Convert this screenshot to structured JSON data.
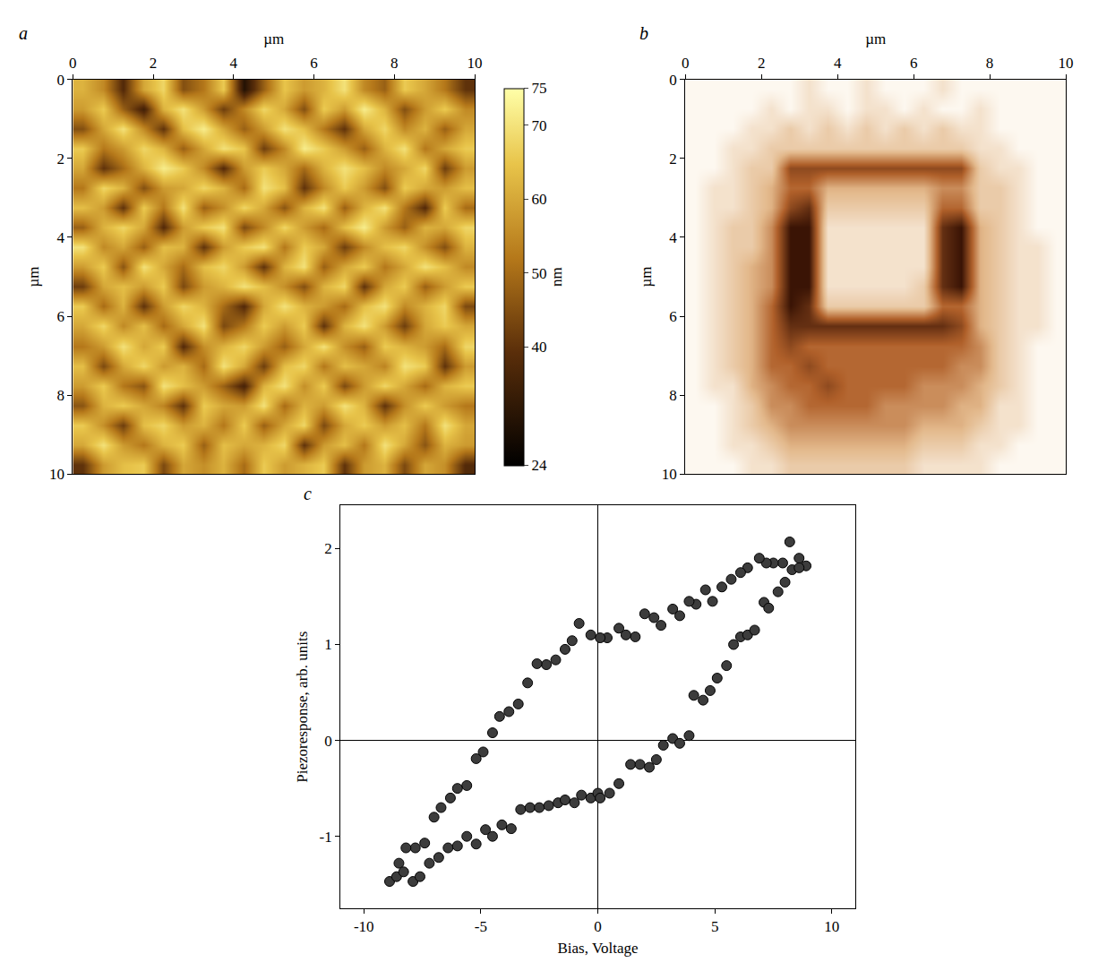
{
  "chart_data": [
    {
      "type": "heatmap",
      "title": "a",
      "x_label": "µm",
      "y_label": "µm",
      "xlim": [
        0,
        10
      ],
      "xticks": [
        0,
        2,
        4,
        6,
        8,
        10
      ],
      "ylim": [
        10,
        0
      ],
      "yticks": [
        0,
        2,
        4,
        6,
        8,
        10
      ],
      "colorbar": {
        "title": "nm",
        "range": [
          24,
          75
        ],
        "ticks": [
          24,
          40,
          50,
          60,
          70,
          75
        ]
      },
      "cells": [
        [
          62,
          55,
          38,
          60,
          68,
          45,
          52,
          66,
          30,
          48,
          65,
          58,
          62,
          70,
          55,
          48,
          66,
          60,
          52,
          40
        ],
        [
          58,
          66,
          48,
          35,
          62,
          70,
          58,
          42,
          55,
          68,
          60,
          45,
          66,
          58,
          72,
          62,
          45,
          58,
          66,
          55
        ],
        [
          45,
          60,
          70,
          55,
          40,
          64,
          72,
          60,
          48,
          58,
          70,
          64,
          52,
          40,
          60,
          68,
          55,
          62,
          48,
          60
        ],
        [
          66,
          52,
          58,
          68,
          62,
          48,
          60,
          70,
          65,
          42,
          55,
          72,
          66,
          58,
          48,
          62,
          70,
          52,
          60,
          66
        ],
        [
          60,
          40,
          50,
          62,
          72,
          66,
          55,
          38,
          58,
          66,
          60,
          50,
          62,
          70,
          64,
          55,
          60,
          68,
          42,
          58
        ],
        [
          52,
          68,
          62,
          45,
          58,
          60,
          68,
          62,
          50,
          70,
          64,
          40,
          55,
          66,
          58,
          45,
          66,
          60,
          58,
          64
        ],
        [
          64,
          58,
          40,
          66,
          52,
          70,
          48,
          56,
          68,
          60,
          46,
          62,
          70,
          48,
          62,
          70,
          52,
          38,
          66,
          50
        ],
        [
          48,
          62,
          68,
          60,
          38,
          58,
          66,
          70,
          44,
          55,
          68,
          58,
          50,
          64,
          72,
          58,
          48,
          62,
          60,
          68
        ],
        [
          70,
          55,
          60,
          48,
          64,
          62,
          40,
          58,
          66,
          70,
          52,
          66,
          60,
          42,
          55,
          64,
          68,
          56,
          45,
          62
        ],
        [
          58,
          66,
          46,
          70,
          60,
          50,
          64,
          68,
          58,
          40,
          62,
          70,
          48,
          60,
          66,
          52,
          60,
          70,
          64,
          55
        ],
        [
          42,
          60,
          64,
          58,
          66,
          44,
          58,
          62,
          70,
          64,
          56,
          45,
          62,
          68,
          40,
          60,
          66,
          48,
          58,
          66
        ],
        [
          66,
          50,
          62,
          40,
          58,
          68,
          62,
          50,
          38,
          60,
          70,
          62,
          58,
          50,
          64,
          70,
          55,
          62,
          68,
          44
        ],
        [
          60,
          68,
          55,
          64,
          50,
          60,
          70,
          44,
          52,
          66,
          58,
          66,
          40,
          62,
          70,
          58,
          42,
          60,
          66,
          60
        ],
        [
          52,
          58,
          70,
          60,
          66,
          38,
          56,
          62,
          68,
          58,
          48,
          60,
          70,
          56,
          48,
          66,
          62,
          58,
          50,
          68
        ],
        [
          64,
          44,
          60,
          68,
          58,
          62,
          50,
          70,
          60,
          42,
          64,
          68,
          52,
          64,
          60,
          54,
          70,
          66,
          40,
          58
        ],
        [
          58,
          66,
          52,
          46,
          70,
          64,
          58,
          48,
          36,
          62,
          70,
          56,
          66,
          44,
          58,
          68,
          60,
          50,
          62,
          66
        ],
        [
          46,
          62,
          66,
          60,
          54,
          40,
          66,
          60,
          58,
          70,
          50,
          62,
          58,
          70,
          62,
          40,
          56,
          66,
          58,
          52
        ],
        [
          66,
          56,
          42,
          64,
          68,
          58,
          62,
          52,
          66,
          48,
          60,
          68,
          44,
          60,
          66,
          58,
          64,
          52,
          70,
          60
        ],
        [
          60,
          70,
          58,
          52,
          62,
          66,
          48,
          64,
          60,
          62,
          68,
          40,
          58,
          64,
          52,
          70,
          60,
          46,
          62,
          58
        ],
        [
          40,
          58,
          64,
          66,
          44,
          60,
          56,
          62,
          50,
          66,
          58,
          62,
          66,
          40,
          58,
          62,
          44,
          60,
          56,
          38
        ]
      ]
    },
    {
      "type": "heatmap",
      "title": "b",
      "x_label": "µm",
      "y_label": "µm",
      "xlim": [
        0,
        10
      ],
      "xticks": [
        0,
        2,
        4,
        6,
        8,
        10
      ],
      "ylim": [
        10,
        0
      ],
      "yticks": [
        0,
        2,
        4,
        6,
        8,
        10
      ],
      "cells": [
        [
          1,
          1,
          1,
          1,
          1,
          1,
          2,
          1,
          1,
          2,
          1,
          1,
          1,
          2,
          1,
          1,
          1,
          1,
          1,
          1
        ],
        [
          1,
          1,
          1,
          1,
          2,
          1,
          2,
          2,
          1,
          2,
          2,
          1,
          2,
          1,
          1,
          2,
          1,
          1,
          1,
          1
        ],
        [
          1,
          1,
          1,
          2,
          2,
          3,
          2,
          3,
          2,
          3,
          2,
          3,
          2,
          3,
          2,
          2,
          1,
          1,
          1,
          1
        ],
        [
          1,
          1,
          2,
          2,
          3,
          3,
          3,
          3,
          3,
          3,
          3,
          3,
          3,
          3,
          3,
          2,
          2,
          1,
          1,
          1
        ],
        [
          1,
          1,
          2,
          3,
          3,
          7,
          7,
          7,
          7,
          7,
          7,
          7,
          7,
          7,
          7,
          3,
          2,
          2,
          1,
          1
        ],
        [
          1,
          2,
          2,
          3,
          4,
          6,
          6,
          4,
          4,
          4,
          4,
          4,
          4,
          5,
          5,
          3,
          3,
          2,
          1,
          1
        ],
        [
          1,
          2,
          2,
          3,
          4,
          7,
          8,
          3,
          3,
          3,
          3,
          3,
          3,
          6,
          6,
          3,
          3,
          2,
          1,
          1
        ],
        [
          1,
          2,
          3,
          3,
          5,
          9,
          9,
          2,
          2,
          2,
          2,
          2,
          2,
          8,
          9,
          4,
          3,
          2,
          1,
          1
        ],
        [
          1,
          2,
          3,
          3,
          5,
          9,
          9,
          2,
          2,
          2,
          2,
          2,
          2,
          8,
          9,
          4,
          3,
          2,
          2,
          1
        ],
        [
          1,
          2,
          3,
          4,
          5,
          9,
          9,
          2,
          2,
          2,
          2,
          2,
          2,
          8,
          9,
          4,
          3,
          2,
          2,
          1
        ],
        [
          1,
          2,
          3,
          4,
          5,
          9,
          9,
          2,
          2,
          2,
          2,
          2,
          3,
          8,
          9,
          4,
          3,
          2,
          2,
          1
        ],
        [
          1,
          2,
          3,
          4,
          6,
          9,
          8,
          3,
          3,
          3,
          3,
          3,
          3,
          6,
          6,
          4,
          3,
          2,
          2,
          1
        ],
        [
          1,
          2,
          3,
          4,
          6,
          8,
          8,
          8,
          8,
          8,
          8,
          8,
          8,
          8,
          7,
          4,
          3,
          2,
          2,
          1
        ],
        [
          1,
          2,
          3,
          4,
          6,
          7,
          6,
          6,
          6,
          6,
          6,
          6,
          6,
          6,
          6,
          5,
          3,
          2,
          1,
          1
        ],
        [
          1,
          2,
          3,
          4,
          6,
          6,
          7,
          6,
          6,
          6,
          6,
          6,
          6,
          6,
          5,
          5,
          3,
          2,
          1,
          1
        ],
        [
          1,
          2,
          2,
          4,
          5,
          6,
          6,
          7,
          6,
          6,
          6,
          6,
          5,
          5,
          5,
          4,
          3,
          2,
          1,
          1
        ],
        [
          1,
          1,
          2,
          3,
          5,
          5,
          6,
          6,
          6,
          6,
          5,
          5,
          5,
          5,
          4,
          4,
          2,
          2,
          1,
          1
        ],
        [
          1,
          1,
          2,
          3,
          4,
          5,
          5,
          5,
          5,
          5,
          5,
          5,
          4,
          4,
          4,
          3,
          2,
          2,
          1,
          1
        ],
        [
          1,
          1,
          2,
          2,
          3,
          4,
          4,
          4,
          4,
          4,
          4,
          4,
          3,
          3,
          3,
          2,
          2,
          1,
          1,
          1
        ],
        [
          1,
          1,
          1,
          2,
          2,
          3,
          3,
          3,
          3,
          3,
          3,
          3,
          2,
          2,
          2,
          2,
          1,
          1,
          1,
          1
        ]
      ]
    },
    {
      "type": "scatter",
      "title": "c",
      "x_label": "Bias, Voltage",
      "y_label": "Piezoresponse, arb. units",
      "xlim": [
        -11,
        11
      ],
      "xticks": [
        -10,
        -5,
        0,
        5,
        10
      ],
      "ylim": [
        -1.75,
        2.45
      ],
      "yticks": [
        -1,
        0,
        1,
        2
      ],
      "color": "#3c3c3c",
      "marker": "circle",
      "x": [
        8.9,
        8.6,
        8.2,
        7.9,
        7.5,
        7.2,
        6.9,
        6.4,
        6.1,
        5.7,
        5.3,
        4.9,
        4.6,
        4.2,
        3.9,
        3.5,
        3.2,
        2.7,
        2.4,
        2.0,
        1.6,
        1.2,
        0.9,
        0.4,
        0.1,
        -0.3,
        -0.8,
        -1.1,
        -1.4,
        -1.8,
        -2.2,
        -2.6,
        -3.0,
        -3.4,
        -3.8,
        -4.2,
        -4.5,
        -4.9,
        -5.2,
        -5.6,
        -6.0,
        -6.3,
        -6.7,
        -7.0,
        -7.4,
        -7.8,
        -8.2,
        -8.5,
        -8.9,
        -8.6,
        -8.3,
        -7.9,
        -7.6,
        -7.2,
        -6.8,
        -6.4,
        -6.0,
        -5.6,
        -5.2,
        -4.8,
        -4.5,
        -4.1,
        -3.7,
        -3.3,
        -2.9,
        -2.5,
        -2.1,
        -1.7,
        -1.4,
        -1.0,
        -0.7,
        -0.3,
        0.0,
        0.1,
        0.5,
        0.9,
        1.4,
        1.8,
        2.2,
        2.5,
        2.8,
        3.2,
        3.5,
        3.9,
        4.1,
        4.5,
        4.8,
        5.1,
        5.5,
        5.8,
        6.1,
        6.4,
        6.7,
        7.1,
        7.3,
        7.7,
        8.0,
        8.3,
        8.6
      ],
      "values": [
        1.82,
        1.9,
        2.07,
        1.85,
        1.85,
        1.85,
        1.9,
        1.8,
        1.75,
        1.68,
        1.6,
        1.45,
        1.57,
        1.42,
        1.45,
        1.3,
        1.37,
        1.2,
        1.28,
        1.32,
        1.08,
        1.1,
        1.17,
        1.07,
        1.07,
        1.1,
        1.22,
        1.04,
        0.95,
        0.84,
        0.79,
        0.8,
        0.6,
        0.38,
        0.3,
        0.25,
        0.08,
        -0.12,
        -0.19,
        -0.47,
        -0.5,
        -0.6,
        -0.7,
        -0.8,
        -1.07,
        -1.12,
        -1.12,
        -1.28,
        -1.47,
        -1.42,
        -1.37,
        -1.47,
        -1.42,
        -1.28,
        -1.22,
        -1.12,
        -1.1,
        -1.0,
        -1.08,
        -0.93,
        -1.0,
        -0.88,
        -0.92,
        -0.72,
        -0.7,
        -0.7,
        -0.68,
        -0.65,
        -0.62,
        -0.65,
        -0.57,
        -0.6,
        -0.55,
        -0.6,
        -0.55,
        -0.45,
        -0.25,
        -0.25,
        -0.28,
        -0.2,
        -0.05,
        0.02,
        -0.03,
        0.05,
        0.47,
        0.42,
        0.52,
        0.65,
        0.78,
        1.0,
        1.08,
        1.1,
        1.15,
        1.44,
        1.38,
        1.55,
        1.65,
        1.78,
        1.8
      ]
    }
  ]
}
